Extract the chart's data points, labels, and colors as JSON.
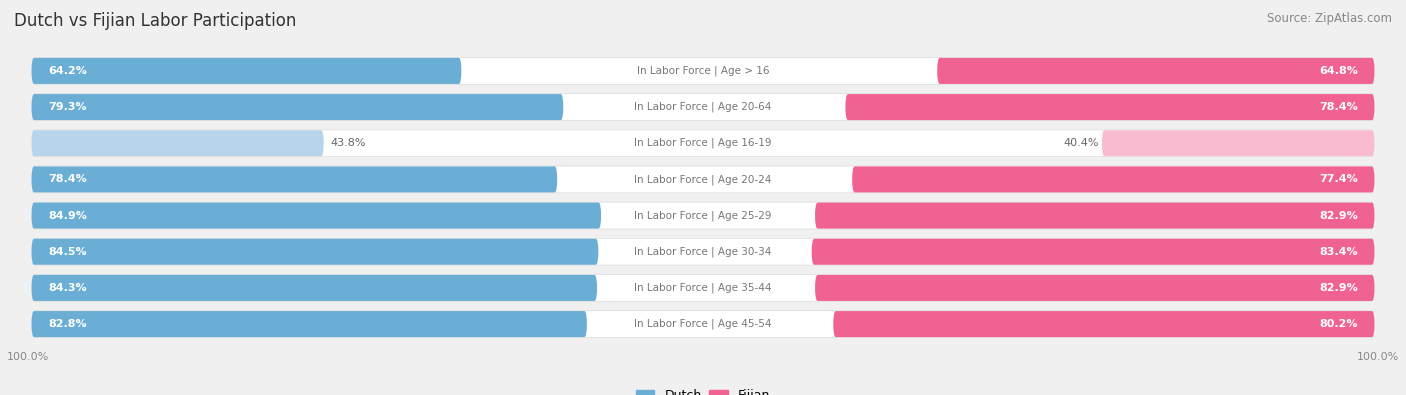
{
  "title": "Dutch vs Fijian Labor Participation",
  "source": "Source: ZipAtlas.com",
  "categories": [
    "In Labor Force | Age > 16",
    "In Labor Force | Age 20-64",
    "In Labor Force | Age 16-19",
    "In Labor Force | Age 20-24",
    "In Labor Force | Age 25-29",
    "In Labor Force | Age 30-34",
    "In Labor Force | Age 35-44",
    "In Labor Force | Age 45-54"
  ],
  "dutch_values": [
    64.2,
    79.3,
    43.8,
    78.4,
    84.9,
    84.5,
    84.3,
    82.8
  ],
  "fijian_values": [
    64.8,
    78.4,
    40.4,
    77.4,
    82.9,
    83.4,
    82.9,
    80.2
  ],
  "dutch_color_full": "#6aaed6",
  "dutch_color_light": "#b8d4ea",
  "fijian_color_full": "#f06292",
  "fijian_color_light": "#f8bbd0",
  "label_color_white": "#ffffff",
  "label_color_dark": "#666666",
  "center_label_color": "#777777",
  "background_color": "#f0f0f0",
  "pill_color": "#ffffff",
  "pill_shadow_color": "#dddddd",
  "max_value": 100.0,
  "bar_height": 0.72,
  "title_fontsize": 12,
  "source_fontsize": 8.5,
  "value_fontsize": 8,
  "category_fontsize": 7.5,
  "legend_fontsize": 9,
  "axis_label_fontsize": 8,
  "threshold_for_light": 50
}
